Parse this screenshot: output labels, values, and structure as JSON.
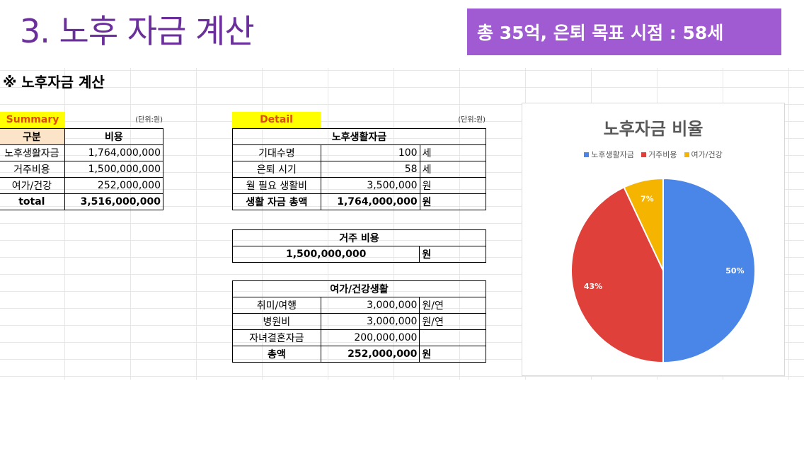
{
  "slide": {
    "title": "3. 노후 자금 계산",
    "banner": "총 35억, 은퇴 목표 시점 : 58세"
  },
  "sheet": {
    "section_title": "※ 노후자금 계산",
    "summary": {
      "label": "Summary",
      "unit_note": "(단위:원)",
      "col_headers": [
        "구분",
        "비용"
      ],
      "rows": [
        {
          "label": "노후생활자금",
          "value": "1,764,000,000"
        },
        {
          "label": "거주비용",
          "value": "1,500,000,000"
        },
        {
          "label": "여가/건강",
          "value": "252,000,000"
        }
      ],
      "total": {
        "label": "total",
        "value": "3,516,000,000"
      }
    },
    "detail": {
      "label": "Detail",
      "unit_note": "(단위:원)",
      "living": {
        "header": "노후생활자금",
        "rows": [
          {
            "label": "기대수명",
            "value": "100",
            "unit": "세"
          },
          {
            "label": "은퇴 시기",
            "value": "58",
            "unit": "세"
          },
          {
            "label": "월 필요 생활비",
            "value": "3,500,000",
            "unit": "원"
          }
        ],
        "total": {
          "label": "생활 자금 총액",
          "value": "1,764,000,000",
          "unit": "원"
        }
      },
      "housing": {
        "header": "거주 비용",
        "value": "1,500,000,000",
        "unit": "원"
      },
      "leisure": {
        "header": "여가/건강생활",
        "rows": [
          {
            "label": "취미/여행",
            "value": "3,000,000",
            "unit": "원/연"
          },
          {
            "label": "병원비",
            "value": "3,000,000",
            "unit": "원/연"
          },
          {
            "label": "자녀결혼자금",
            "value": "200,000,000",
            "unit": ""
          }
        ],
        "total": {
          "label": "총액",
          "value": "252,000,000",
          "unit": "원"
        }
      }
    }
  },
  "chart_data": {
    "type": "pie",
    "title": "노후자금 비율",
    "categories": [
      "노후생활자금",
      "거주비용",
      "여가/건강"
    ],
    "values": [
      50,
      43,
      7
    ],
    "data_labels": [
      "50%",
      "43%",
      "7%"
    ],
    "colors": [
      "#4a86e8",
      "#e0403a",
      "#f4b400"
    ],
    "legend_position": "top"
  }
}
